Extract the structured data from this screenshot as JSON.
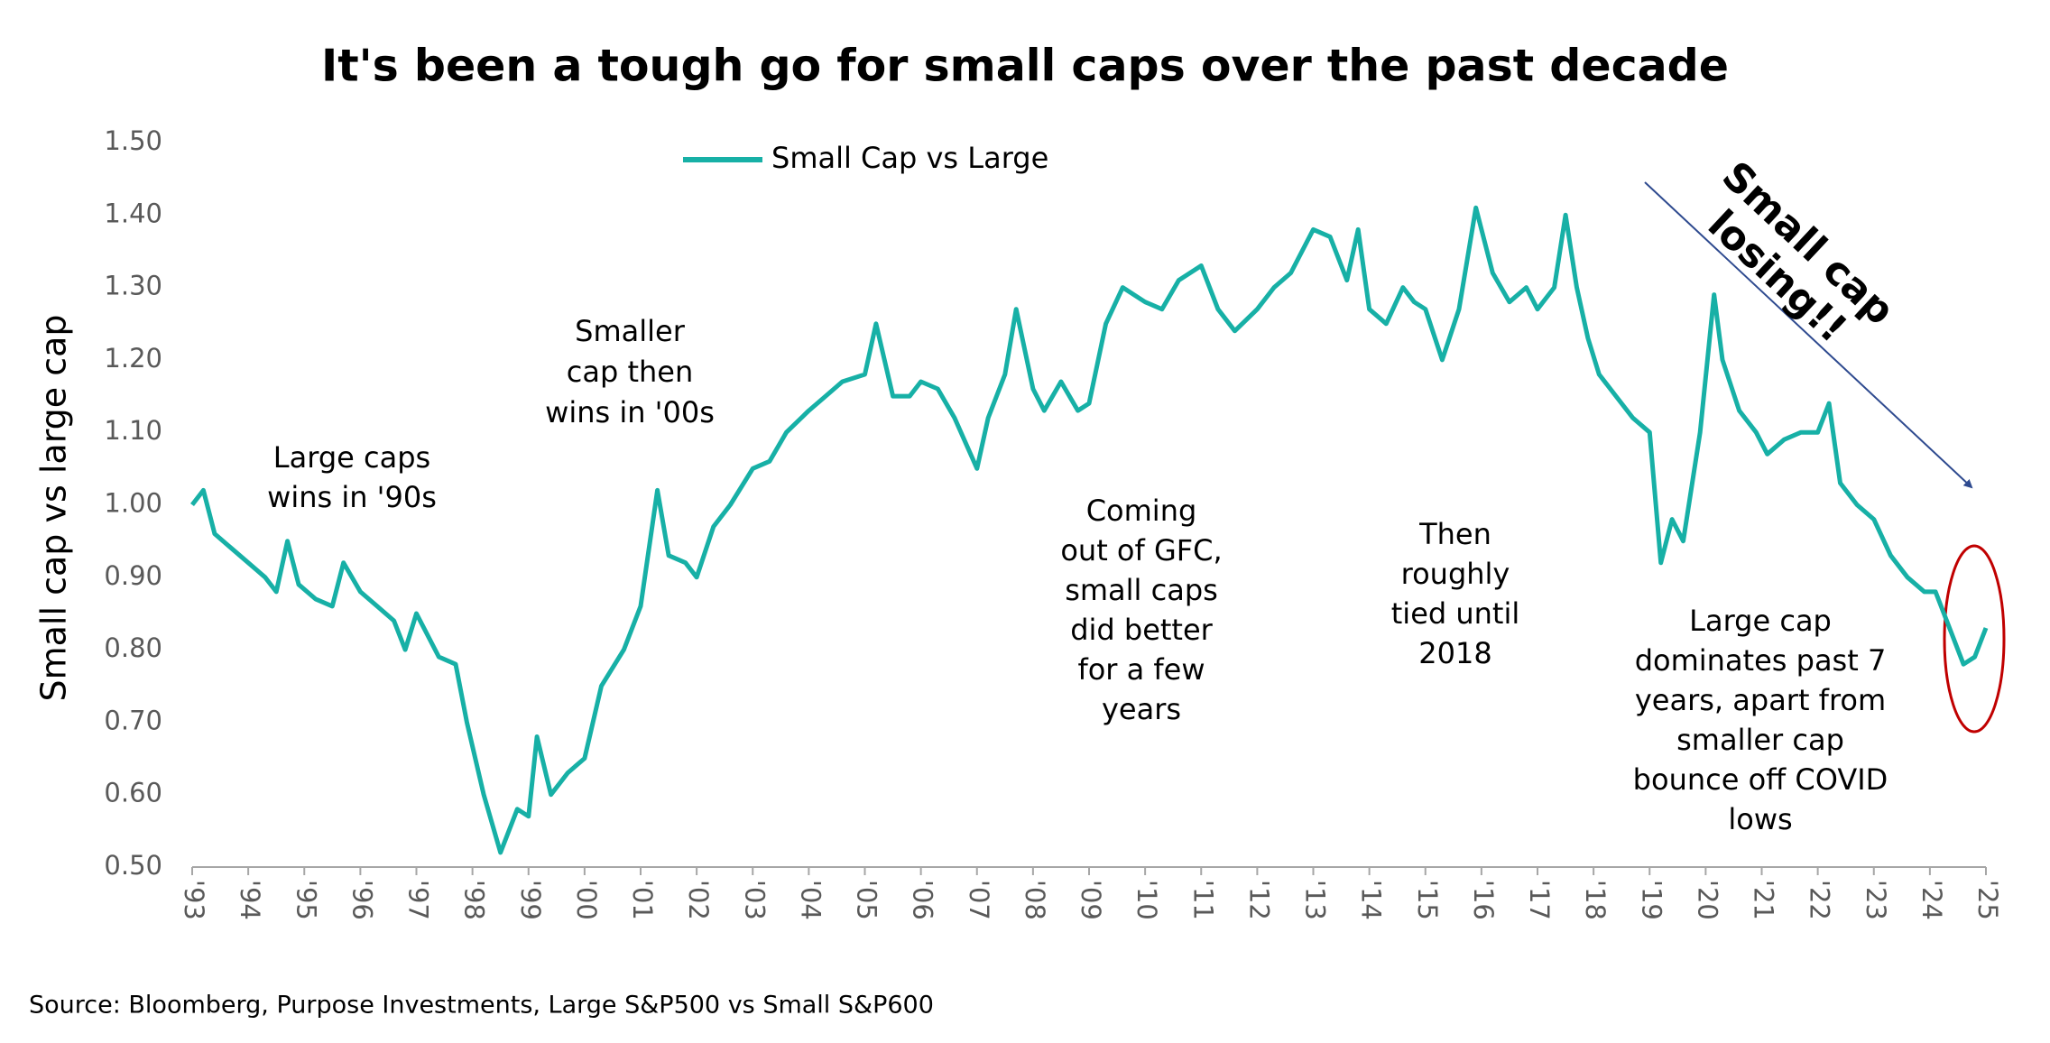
{
  "chart_data": {
    "type": "line",
    "title": "It's been a tough go for small caps over the past decade",
    "y_label": "Small cap vs large cap",
    "source": "Source: Bloomberg, Purpose Investments, Large S&P500 vs Small S&P600",
    "x": [
      1993.0,
      1993.2,
      1993.4,
      1993.7,
      1994.0,
      1994.3,
      1994.5,
      1994.7,
      1994.9,
      1995.2,
      1995.5,
      1995.7,
      1996.0,
      1996.3,
      1996.6,
      1996.8,
      1997.0,
      1997.4,
      1997.7,
      1997.9,
      1998.2,
      1998.5,
      1998.8,
      1999.0,
      1999.15,
      1999.4,
      1999.7,
      2000.0,
      2000.3,
      2000.7,
      2001.0,
      2001.3,
      2001.5,
      2001.8,
      2002.0,
      2002.3,
      2002.6,
      2003.0,
      2003.3,
      2003.6,
      2004.0,
      2004.3,
      2004.6,
      2005.0,
      2005.2,
      2005.5,
      2005.8,
      2006.0,
      2006.3,
      2006.6,
      2007.0,
      2007.2,
      2007.5,
      2007.7,
      2008.0,
      2008.2,
      2008.5,
      2008.8,
      2009.0,
      2009.3,
      2009.6,
      2010.0,
      2010.3,
      2010.6,
      2011.0,
      2011.3,
      2011.6,
      2012.0,
      2012.3,
      2012.6,
      2013.0,
      2013.3,
      2013.6,
      2013.8,
      2014.0,
      2014.3,
      2014.6,
      2014.8,
      2015.0,
      2015.3,
      2015.6,
      2015.9,
      2016.2,
      2016.5,
      2016.8,
      2017.0,
      2017.3,
      2017.5,
      2017.7,
      2017.9,
      2018.1,
      2018.4,
      2018.7,
      2019.0,
      2019.2,
      2019.4,
      2019.6,
      2019.9,
      2020.15,
      2020.3,
      2020.6,
      2020.9,
      2021.1,
      2021.4,
      2021.7,
      2022.0,
      2022.2,
      2022.4,
      2022.7,
      2023.0,
      2023.3,
      2023.6,
      2023.9,
      2024.1,
      2024.4,
      2024.6,
      2024.8,
      2025.0
    ],
    "series": [
      {
        "name": "Small Cap vs Large",
        "color": "#17b0a6",
        "values": [
          1.0,
          1.02,
          0.96,
          0.94,
          0.92,
          0.9,
          0.88,
          0.95,
          0.89,
          0.87,
          0.86,
          0.92,
          0.88,
          0.86,
          0.84,
          0.8,
          0.85,
          0.79,
          0.78,
          0.7,
          0.6,
          0.52,
          0.58,
          0.57,
          0.68,
          0.6,
          0.63,
          0.65,
          0.75,
          0.8,
          0.86,
          1.02,
          0.93,
          0.92,
          0.9,
          0.97,
          1.0,
          1.05,
          1.06,
          1.1,
          1.13,
          1.15,
          1.17,
          1.18,
          1.25,
          1.15,
          1.15,
          1.17,
          1.16,
          1.12,
          1.05,
          1.12,
          1.18,
          1.27,
          1.16,
          1.13,
          1.17,
          1.13,
          1.14,
          1.25,
          1.3,
          1.28,
          1.27,
          1.31,
          1.33,
          1.27,
          1.24,
          1.27,
          1.3,
          1.32,
          1.38,
          1.37,
          1.31,
          1.38,
          1.27,
          1.25,
          1.3,
          1.28,
          1.27,
          1.2,
          1.27,
          1.41,
          1.32,
          1.28,
          1.3,
          1.27,
          1.3,
          1.4,
          1.3,
          1.23,
          1.18,
          1.15,
          1.12,
          1.1,
          0.92,
          0.98,
          0.95,
          1.1,
          1.29,
          1.2,
          1.13,
          1.1,
          1.07,
          1.09,
          1.1,
          1.1,
          1.14,
          1.03,
          1.0,
          0.98,
          0.93,
          0.9,
          0.88,
          0.88,
          0.82,
          0.78,
          0.79,
          0.83
        ]
      }
    ],
    "xlim": [
      1993,
      2025
    ],
    "xticks": [
      {
        "value": 1993,
        "label": "'93"
      },
      {
        "value": 1994,
        "label": "'94"
      },
      {
        "value": 1995,
        "label": "'95"
      },
      {
        "value": 1996,
        "label": "'96"
      },
      {
        "value": 1997,
        "label": "'97"
      },
      {
        "value": 1998,
        "label": "'98"
      },
      {
        "value": 1999,
        "label": "'99"
      },
      {
        "value": 2000,
        "label": "'00"
      },
      {
        "value": 2001,
        "label": "'01"
      },
      {
        "value": 2002,
        "label": "'02"
      },
      {
        "value": 2003,
        "label": "'03"
      },
      {
        "value": 2004,
        "label": "'04"
      },
      {
        "value": 2005,
        "label": "'05"
      },
      {
        "value": 2006,
        "label": "'06"
      },
      {
        "value": 2007,
        "label": "'07"
      },
      {
        "value": 2008,
        "label": "'08"
      },
      {
        "value": 2009,
        "label": "'09"
      },
      {
        "value": 2010,
        "label": "'10"
      },
      {
        "value": 2011,
        "label": "'11"
      },
      {
        "value": 2012,
        "label": "'12"
      },
      {
        "value": 2013,
        "label": "'13"
      },
      {
        "value": 2014,
        "label": "'14"
      },
      {
        "value": 2015,
        "label": "'15"
      },
      {
        "value": 2016,
        "label": "'16"
      },
      {
        "value": 2017,
        "label": "'17"
      },
      {
        "value": 2018,
        "label": "'18"
      },
      {
        "value": 2019,
        "label": "'19"
      },
      {
        "value": 2020,
        "label": "'20"
      },
      {
        "value": 2021,
        "label": "'21"
      },
      {
        "value": 2022,
        "label": "'22"
      },
      {
        "value": 2023,
        "label": "'23"
      },
      {
        "value": 2024,
        "label": "'24"
      },
      {
        "value": 2025,
        "label": "'25"
      }
    ],
    "ylim": [
      0.5,
      1.5
    ],
    "yticks": [
      {
        "value": 0.5,
        "label": "0.50"
      },
      {
        "value": 0.6,
        "label": "0.60"
      },
      {
        "value": 0.7,
        "label": "0.70"
      },
      {
        "value": 0.8,
        "label": "0.80"
      },
      {
        "value": 0.9,
        "label": "0.90"
      },
      {
        "value": 1.0,
        "label": "1.00"
      },
      {
        "value": 1.1,
        "label": "1.10"
      },
      {
        "value": 1.2,
        "label": "1.20"
      },
      {
        "value": 1.3,
        "label": "1.30"
      },
      {
        "value": 1.4,
        "label": "1.40"
      },
      {
        "value": 1.5,
        "label": "1.50"
      }
    ],
    "annotations": [
      {
        "lines": [
          "Large caps",
          "wins in '90s"
        ]
      },
      {
        "lines": [
          "Smaller",
          "cap then",
          "wins in '00s"
        ]
      },
      {
        "lines": [
          "Coming",
          "out of GFC,",
          "small caps",
          "did better",
          "for a few",
          "years"
        ]
      },
      {
        "lines": [
          "Then",
          "roughly",
          "tied until",
          "2018"
        ]
      },
      {
        "lines": [
          "Large cap",
          "dominates past 7",
          "years, apart from",
          "smaller cap",
          "bounce off COVID",
          "lows"
        ]
      },
      {
        "lines": [
          "Small cap",
          "losing!!"
        ]
      }
    ]
  }
}
